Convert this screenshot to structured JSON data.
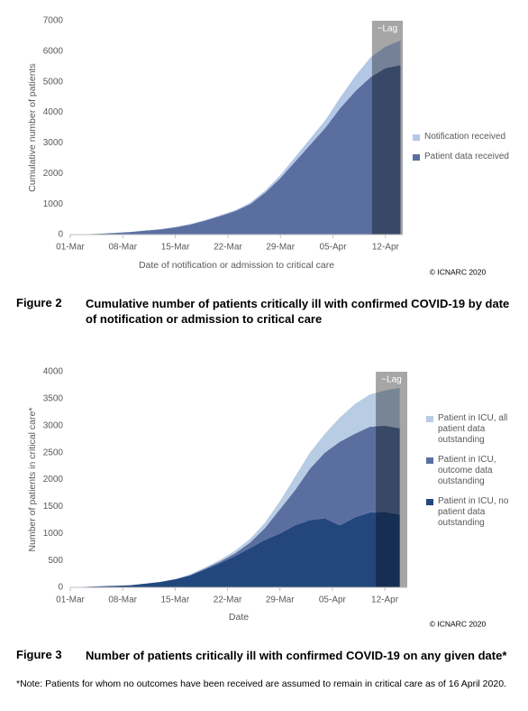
{
  "chart_data": [
    {
      "type": "area",
      "stacked": true,
      "y_label": "Cumulative number of patients",
      "x_label": "Date of notification or admission to critical care",
      "credit": "© ICNARC 2020",
      "figure_label": "Figure 2",
      "caption": "Cumulative number of patients critically ill with confirmed COVID-19 by date of notification or admission to critical care",
      "lag": {
        "label": "~Lag",
        "start": 40.2
      },
      "x": [
        0,
        2,
        4,
        6,
        8,
        10,
        12,
        14,
        16,
        18,
        20,
        22,
        24,
        26,
        28,
        30,
        32,
        34,
        36,
        38,
        40,
        42,
        44
      ],
      "xlim": [
        0,
        44.3
      ],
      "xticks": [
        {
          "value": 0,
          "label": "01-Mar"
        },
        {
          "value": 7,
          "label": "08-Mar"
        },
        {
          "value": 14,
          "label": "15-Mar"
        },
        {
          "value": 21,
          "label": "22-Mar"
        },
        {
          "value": 28,
          "label": "29-Mar"
        },
        {
          "value": 35,
          "label": "05-Apr"
        },
        {
          "value": 42,
          "label": "12-Apr"
        }
      ],
      "ylim": [
        0,
        7000
      ],
      "yticks": [
        0,
        1000,
        2000,
        3000,
        4000,
        5000,
        6000,
        7000
      ],
      "series": [
        {
          "name": "Patient data received",
          "color": "#5a6f9f",
          "values": [
            0,
            10,
            30,
            55,
            85,
            130,
            170,
            240,
            330,
            460,
            610,
            770,
            1000,
            1380,
            1850,
            2400,
            2950,
            3500,
            4150,
            4700,
            5150,
            5450,
            5550
          ]
        },
        {
          "name": "Notification received",
          "color": "#b4c7e7",
          "values": [
            0,
            0,
            0,
            5,
            5,
            10,
            10,
            10,
            20,
            20,
            30,
            30,
            50,
            70,
            100,
            150,
            200,
            250,
            350,
            500,
            650,
            700,
            800
          ]
        }
      ]
    },
    {
      "type": "area",
      "stacked": true,
      "y_label": "Number of patients in critical care*",
      "x_label": "Date",
      "credit": "© ICNARC 2020",
      "figure_label": "Figure 3",
      "caption": "Number of patients critically ill with confirmed COVID-19 on any given date*",
      "lag": {
        "label": "~Lag",
        "start": 40.8
      },
      "x": [
        0,
        2,
        4,
        6,
        8,
        10,
        12,
        14,
        16,
        18,
        20,
        22,
        24,
        26,
        28,
        30,
        32,
        34,
        36,
        38,
        40,
        42,
        44
      ],
      "xlim": [
        0,
        45
      ],
      "xticks": [
        {
          "value": 0,
          "label": "01-Mar"
        },
        {
          "value": 7,
          "label": "08-Mar"
        },
        {
          "value": 14,
          "label": "15-Mar"
        },
        {
          "value": 21,
          "label": "22-Mar"
        },
        {
          "value": 28,
          "label": "29-Mar"
        },
        {
          "value": 35,
          "label": "05-Apr"
        },
        {
          "value": 42,
          "label": "12-Apr"
        }
      ],
      "ylim": [
        0,
        4000
      ],
      "yticks": [
        0,
        500,
        1000,
        1500,
        2000,
        2500,
        3000,
        3500,
        4000
      ],
      "series": [
        {
          "name": "Patient in ICU, no patient data outstanding",
          "color": "#23477d",
          "values": [
            0,
            10,
            20,
            30,
            40,
            70,
            100,
            150,
            220,
            330,
            450,
            580,
            730,
            880,
            1000,
            1150,
            1250,
            1280,
            1150,
            1300,
            1390,
            1400,
            1350
          ]
        },
        {
          "name": "Patient in ICU, outcome data outstanding",
          "color": "#5a6f9f",
          "values": [
            0,
            0,
            0,
            0,
            0,
            0,
            0,
            0,
            10,
            20,
            30,
            50,
            100,
            220,
            450,
            650,
            950,
            1220,
            1550,
            1550,
            1590,
            1600,
            1600
          ]
        },
        {
          "name": "Patient in ICU, all patient data outstanding",
          "color": "#b8cce4",
          "values": [
            0,
            0,
            0,
            0,
            0,
            0,
            0,
            0,
            10,
            20,
            30,
            50,
            70,
            100,
            150,
            250,
            300,
            350,
            450,
            550,
            600,
            650,
            750
          ]
        }
      ]
    }
  ],
  "note": "*Note: Patients for whom no outcomes have been received are assumed to remain in critical care as of 16 April 2020."
}
